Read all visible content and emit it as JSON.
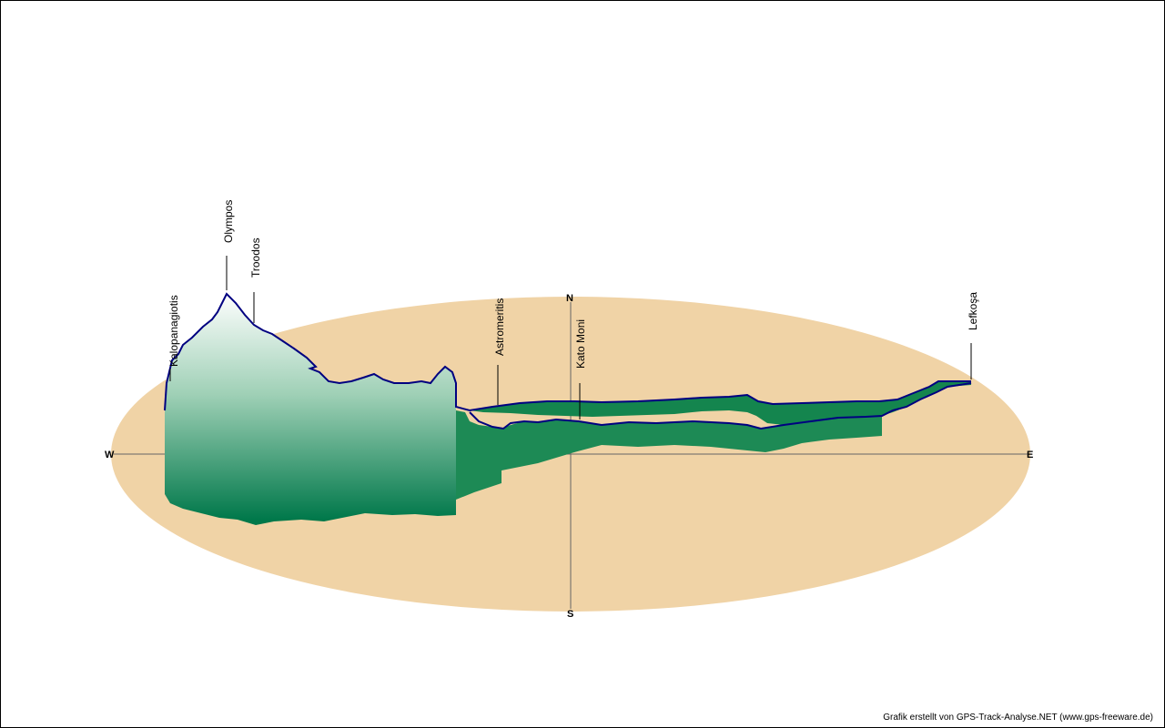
{
  "compass": {
    "north": "N",
    "south": "S",
    "west": "W",
    "east": "E"
  },
  "places": [
    {
      "name": "Kalopanagiotis"
    },
    {
      "name": "Olympos"
    },
    {
      "name": "Troodos"
    },
    {
      "name": "Astromeritis"
    },
    {
      "name": "Kato Moni"
    },
    {
      "name": "Lefkoşa"
    }
  ],
  "credit": "Grafik erstellt von GPS-Track-Analyse.NET (www.gps-freeware.de)",
  "colors": {
    "ground": "#f0d3a6",
    "track": "#000080",
    "fill_dark": "#00784a",
    "fill_light": "#ffffff",
    "axis": "#555555"
  }
}
